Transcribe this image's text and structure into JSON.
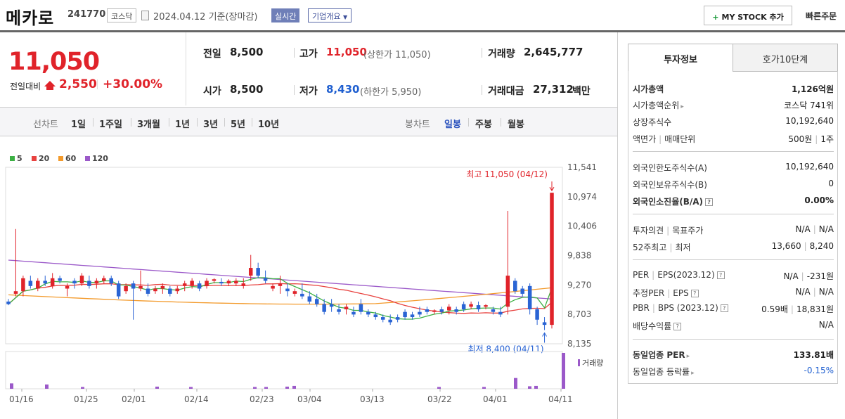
{
  "header": {
    "name": "메카로",
    "code": "241770",
    "market": "코스닥",
    "date_text": "2024.04.12  기준(장마감)",
    "realtime": "실시간",
    "company": "기업개요",
    "mystock": "MY STOCK 추가",
    "quick_order": "빠른주문"
  },
  "price": {
    "current": "11,050",
    "prev_label": "전일대비",
    "change": "2,550",
    "change_pct": "+30.00%"
  },
  "quote": {
    "prev_label": "전일",
    "prev": "8,500",
    "high_label": "고가",
    "high": "11,050",
    "upper_limit": "(상한가 11,050)",
    "volume_label": "거래량",
    "volume": "2,645,777",
    "open_label": "시가",
    "open": "8,500",
    "low_label": "저가",
    "low": "8,430",
    "lower_limit": "(하한가 5,950)",
    "amount_label": "거래대금",
    "amount": "27,312",
    "amount_unit": "백만"
  },
  "period": {
    "line_label": "선차트",
    "line_opts": [
      "1일",
      "1주일",
      "3개월",
      "1년",
      "3년",
      "5년",
      "10년"
    ],
    "candle_label": "봉차트",
    "candle_opts": [
      "일봉",
      "주봉",
      "월봉"
    ],
    "selected": "일봉"
  },
  "chart_data": {
    "type": "candlestick",
    "legend": [
      {
        "name": "5",
        "color": "#3cb043"
      },
      {
        "name": "20",
        "color": "#e8423f"
      },
      {
        "name": "60",
        "color": "#f39a2b"
      },
      {
        "name": "120",
        "color": "#9b59c9"
      }
    ],
    "ylim": [
      8135,
      11541
    ],
    "yticks": [
      "11,541",
      "10,974",
      "10,406",
      "9,838",
      "9,270",
      "8,703",
      "8,135"
    ],
    "xticks": [
      "01/16",
      "01/25",
      "02/01",
      "02/14",
      "02/23",
      "03/04",
      "03/13",
      "03/22",
      "04/01",
      "04/11"
    ],
    "max_label": "최고 11,050 (04/12)",
    "min_label": "최저 8,400 (04/11)",
    "volume_label": "거래량",
    "candles": [
      [
        8950,
        9000,
        8880,
        8900
      ],
      [
        9100,
        10350,
        9050,
        9150
      ],
      [
        9150,
        9450,
        9050,
        9400
      ],
      [
        9350,
        9450,
        9200,
        9250
      ],
      [
        9200,
        9400,
        9150,
        9350
      ],
      [
        9350,
        9450,
        9250,
        9300
      ],
      [
        9250,
        9500,
        9200,
        9400
      ],
      [
        9400,
        9450,
        9300,
        9350
      ],
      [
        9200,
        9300,
        9050,
        9250
      ],
      [
        9350,
        9400,
        9200,
        9300
      ],
      [
        9300,
        9500,
        9250,
        9450
      ],
      [
        9350,
        9450,
        9200,
        9250
      ],
      [
        9300,
        9400,
        9200,
        9350
      ],
      [
        9350,
        9450,
        9300,
        9400
      ],
      [
        9400,
        9450,
        9250,
        9300
      ],
      [
        9300,
        9350,
        9000,
        9050
      ],
      [
        9150,
        9300,
        9100,
        9250
      ],
      [
        9300,
        9350,
        8600,
        9200
      ],
      [
        9200,
        9550,
        9150,
        9250
      ],
      [
        9200,
        9300,
        9050,
        9100
      ],
      [
        9150,
        9250,
        9100,
        9200
      ],
      [
        9200,
        9300,
        9100,
        9250
      ],
      [
        9200,
        9250,
        9050,
        9100
      ],
      [
        9150,
        9250,
        9100,
        9200
      ],
      [
        9250,
        9350,
        9150,
        9300
      ],
      [
        9250,
        9400,
        9200,
        9350
      ],
      [
        9300,
        9350,
        9150,
        9200
      ],
      [
        9250,
        9400,
        9200,
        9350
      ],
      [
        9350,
        9400,
        9300,
        9380
      ],
      [
        9330,
        9400,
        9250,
        9300
      ],
      [
        9300,
        9380,
        9250,
        9350
      ],
      [
        9300,
        9400,
        9250,
        9350
      ],
      [
        9250,
        9400,
        9200,
        9300
      ],
      [
        9450,
        9850,
        9350,
        9600
      ],
      [
        9600,
        9700,
        9400,
        9450
      ],
      [
        9400,
        9550,
        9300,
        9350
      ],
      [
        9200,
        9300,
        9150,
        9250
      ],
      [
        9250,
        9450,
        9100,
        9300
      ],
      [
        9200,
        9300,
        9050,
        9150
      ],
      [
        9100,
        9200,
        9050,
        9150
      ],
      [
        9100,
        9300,
        9000,
        9050
      ],
      [
        9050,
        9150,
        8900,
        8950
      ],
      [
        9000,
        9100,
        8850,
        8900
      ],
      [
        8900,
        9000,
        8700,
        8750
      ],
      [
        8900,
        9000,
        8750,
        8850
      ],
      [
        8800,
        8900,
        8700,
        8750
      ],
      [
        8800,
        8900,
        8700,
        8850
      ],
      [
        8750,
        8850,
        8650,
        8700
      ],
      [
        8900,
        9000,
        8700,
        8750
      ],
      [
        8750,
        8800,
        8650,
        8700
      ],
      [
        8700,
        8750,
        8600,
        8650
      ],
      [
        8650,
        8700,
        8550,
        8600
      ],
      [
        8600,
        8700,
        8500,
        8550
      ],
      [
        8650,
        8700,
        8550,
        8600
      ],
      [
        8750,
        8800,
        8600,
        8650
      ],
      [
        8700,
        8750,
        8600,
        8650
      ],
      [
        8750,
        8850,
        8650,
        8700
      ],
      [
        8800,
        8850,
        8700,
        8750
      ],
      [
        8750,
        8800,
        8700,
        8780
      ],
      [
        8800,
        8850,
        8700,
        8750
      ],
      [
        8780,
        8900,
        8700,
        8850
      ],
      [
        8800,
        8850,
        8700,
        8750
      ],
      [
        8900,
        8950,
        8750,
        8800
      ],
      [
        8850,
        8950,
        8800,
        8900
      ],
      [
        8880,
        8950,
        8750,
        8800
      ],
      [
        8850,
        8900,
        8800,
        8880
      ],
      [
        8800,
        8850,
        8700,
        8750
      ],
      [
        8750,
        8850,
        8650,
        8700
      ],
      [
        8850,
        10700,
        8700,
        9450
      ],
      [
        9350,
        9400,
        9100,
        9150
      ],
      [
        9200,
        9250,
        9050,
        9100
      ],
      [
        9250,
        9300,
        8700,
        8800
      ],
      [
        8800,
        8850,
        8500,
        8600
      ],
      [
        8550,
        8650,
        8400,
        8500
      ],
      [
        8500,
        11050,
        8430,
        11050
      ]
    ]
  },
  "info": {
    "tab_active": "투자정보",
    "tab_other": "호가10단계",
    "rows": {
      "mcap_k": "시가총액",
      "mcap_v": "1,126억원",
      "rank_k": "시가총액순위",
      "rank_v": "코스닥 741위",
      "shares_k": "상장주식수",
      "shares_v": "10,192,640",
      "par_k": "액면가",
      "par_k2": "매매단위",
      "par_v": "500원",
      "par_v2": "1주",
      "flim_k": "외국인한도주식수(A)",
      "flim_v": "10,192,640",
      "fhold_k": "외국인보유주식수(B)",
      "fhold_v": "0",
      "fratio_k": "외국인소진율(B/A)",
      "fratio_v": "0.00%",
      "opinion_k": "투자의견",
      "opinion_k2": "목표주가",
      "opinion_v": "N/A",
      "opinion_v2": "N/A",
      "w52_k": "52주최고",
      "w52_k2": "최저",
      "w52_v": "13,660",
      "w52_v2": "8,240",
      "per_k": "PER",
      "per_k2": "EPS(2023.12)",
      "per_v": "N/A",
      "per_v2": "-231원",
      "eper_k": "추정PER",
      "eper_k2": "EPS",
      "eper_v": "N/A",
      "eper_v2": "N/A",
      "pbr_k": "PBR",
      "pbr_k2": "BPS (2023.12)",
      "pbr_v": "0.59배",
      "pbr_v2": "18,831원",
      "div_k": "배당수익률",
      "div_v": "N/A",
      "sper_k": "동일업종 PER",
      "sper_v": "133.81배",
      "srate_k": "동일업종 등락률",
      "srate_v": "-0.15%"
    }
  }
}
